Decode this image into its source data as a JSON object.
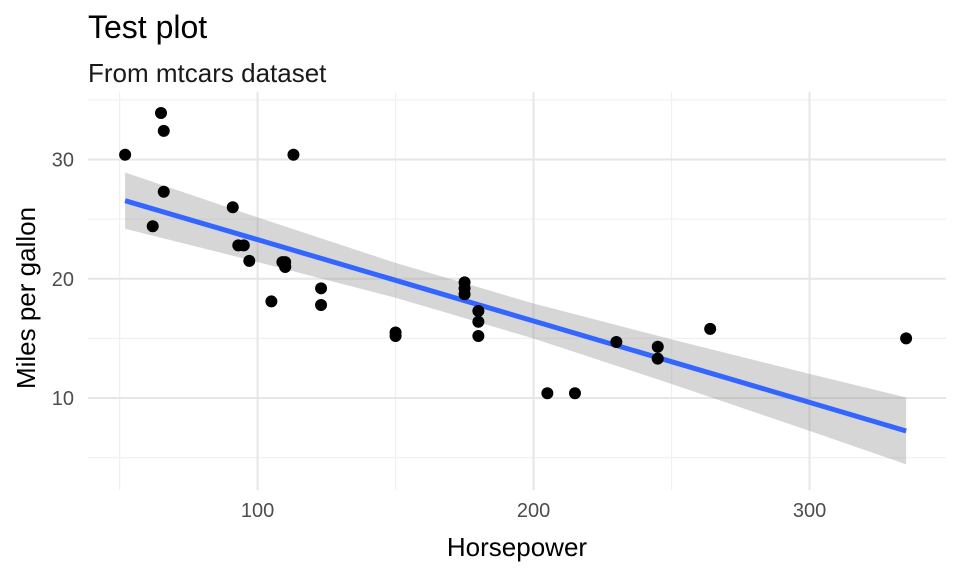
{
  "chart_data": {
    "type": "scatter",
    "title": "Test plot",
    "subtitle": "From mtcars dataset",
    "xlabel": "Horsepower",
    "ylabel": "Miles per gallon",
    "xlim": [
      38.55,
      349.45
    ],
    "ylim": [
      2.29,
      35.66
    ],
    "x_ticks": [
      100,
      200,
      300
    ],
    "y_ticks": [
      10,
      20,
      30
    ],
    "x_minor_ticks": [
      50,
      150,
      250
    ],
    "y_minor_ticks": [
      5,
      15,
      25,
      35
    ],
    "grid": true,
    "legend": "none",
    "point_color": "#000000",
    "smooth_color": "#3366FF",
    "ribbon_color": "#999999",
    "points": [
      {
        "x": 110,
        "y": 21.0
      },
      {
        "x": 110,
        "y": 21.0
      },
      {
        "x": 93,
        "y": 22.8
      },
      {
        "x": 110,
        "y": 21.4
      },
      {
        "x": 175,
        "y": 18.7
      },
      {
        "x": 105,
        "y": 18.1
      },
      {
        "x": 245,
        "y": 14.3
      },
      {
        "x": 62,
        "y": 24.4
      },
      {
        "x": 95,
        "y": 22.8
      },
      {
        "x": 123,
        "y": 19.2
      },
      {
        "x": 123,
        "y": 17.8
      },
      {
        "x": 180,
        "y": 16.4
      },
      {
        "x": 180,
        "y": 17.3
      },
      {
        "x": 180,
        "y": 15.2
      },
      {
        "x": 205,
        "y": 10.4
      },
      {
        "x": 215,
        "y": 10.4
      },
      {
        "x": 230,
        "y": 14.7
      },
      {
        "x": 66,
        "y": 32.4
      },
      {
        "x": 52,
        "y": 30.4
      },
      {
        "x": 65,
        "y": 33.9
      },
      {
        "x": 97,
        "y": 21.5
      },
      {
        "x": 150,
        "y": 15.5
      },
      {
        "x": 150,
        "y": 15.2
      },
      {
        "x": 245,
        "y": 13.3
      },
      {
        "x": 175,
        "y": 19.2
      },
      {
        "x": 66,
        "y": 27.3
      },
      {
        "x": 91,
        "y": 26.0
      },
      {
        "x": 113,
        "y": 30.4
      },
      {
        "x": 264,
        "y": 15.8
      },
      {
        "x": 175,
        "y": 19.7
      },
      {
        "x": 335,
        "y": 15.0
      },
      {
        "x": 109,
        "y": 21.4
      }
    ],
    "smooth": {
      "method": "lm",
      "x": [
        52,
        100,
        150,
        200,
        250,
        300,
        335
      ],
      "fit": [
        26.55,
        23.28,
        19.87,
        16.46,
        13.05,
        9.64,
        7.24
      ],
      "lower": [
        24.19,
        21.41,
        18.41,
        14.99,
        11.18,
        7.25,
        4.44
      ],
      "upper": [
        28.91,
        25.15,
        21.33,
        17.93,
        14.92,
        12.03,
        10.05
      ]
    }
  }
}
